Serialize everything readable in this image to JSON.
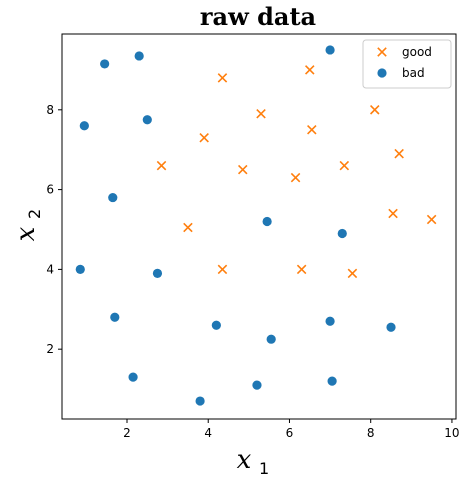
{
  "chart_data": {
    "type": "scatter",
    "title": "raw data",
    "xlabel": {
      "base": "x",
      "sub": "1"
    },
    "ylabel": {
      "base": "x",
      "sub": "2"
    },
    "xlim": [
      0.4,
      10.1
    ],
    "ylim": [
      0.25,
      9.9
    ],
    "xticks": [
      2,
      4,
      6,
      8,
      10
    ],
    "yticks": [
      2,
      4,
      6,
      8
    ],
    "grid": false,
    "legend": "top-right",
    "series": [
      {
        "name": "good",
        "marker": "x",
        "color": "#ff7f0e",
        "points": [
          [
            4.35,
            8.8
          ],
          [
            6.5,
            9.0
          ],
          [
            5.3,
            7.9
          ],
          [
            3.9,
            7.3
          ],
          [
            6.55,
            7.5
          ],
          [
            8.1,
            8.0
          ],
          [
            2.85,
            6.6
          ],
          [
            4.85,
            6.5
          ],
          [
            6.15,
            6.3
          ],
          [
            7.35,
            6.6
          ],
          [
            8.7,
            6.9
          ],
          [
            3.5,
            5.05
          ],
          [
            8.55,
            5.4
          ],
          [
            9.5,
            5.25
          ],
          [
            4.35,
            4.0
          ],
          [
            6.3,
            4.0
          ],
          [
            7.55,
            3.9
          ]
        ]
      },
      {
        "name": "bad",
        "marker": "o",
        "color": "#1f77b4",
        "points": [
          [
            1.45,
            9.15
          ],
          [
            2.3,
            9.35
          ],
          [
            7.0,
            9.5
          ],
          [
            0.95,
            7.6
          ],
          [
            2.5,
            7.75
          ],
          [
            1.65,
            5.8
          ],
          [
            5.45,
            5.2
          ],
          [
            7.3,
            4.9
          ],
          [
            0.85,
            4.0
          ],
          [
            2.75,
            3.9
          ],
          [
            1.7,
            2.8
          ],
          [
            4.2,
            2.6
          ],
          [
            7.0,
            2.7
          ],
          [
            8.5,
            2.55
          ],
          [
            5.55,
            2.25
          ],
          [
            2.15,
            1.3
          ],
          [
            5.2,
            1.1
          ],
          [
            7.05,
            1.2
          ],
          [
            3.8,
            0.7
          ]
        ]
      }
    ]
  }
}
